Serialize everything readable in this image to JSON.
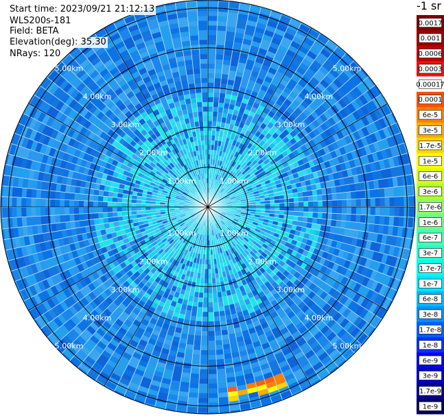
{
  "info": {
    "start_time": "Start time: 2023/09/21 21:12:13",
    "lidar": "WLS200s-181",
    "field": "Field: BETA",
    "elevation": "Elevation(deg): 35.30",
    "nrays": "NRays: 120"
  },
  "chart_data": {
    "type": "heatmap",
    "subtype": "polar-ppi",
    "units_label": "-1 sr",
    "nrays": 120,
    "max_range_km": 5.2,
    "ring_radii_km": [
      1,
      2,
      3,
      4,
      5
    ],
    "range_labels": [
      {
        "text": "1.00km",
        "km": 1
      },
      {
        "text": "2.00km",
        "km": 2
      },
      {
        "text": "3.00km",
        "km": 3
      },
      {
        "text": "4.00km",
        "km": 4
      },
      {
        "text": "5.00km",
        "km": 5
      }
    ],
    "spoke_angles_deg": [
      0,
      30,
      60,
      90,
      120,
      150,
      180,
      210,
      240,
      270,
      300,
      330
    ],
    "colorbar": [
      {
        "label": "0.0017",
        "color": "#7a0000"
      },
      {
        "label": "0.001",
        "color": "#9a0000"
      },
      {
        "label": "0.0006",
        "color": "#c00000"
      },
      {
        "label": "0.0003",
        "color": "#ee1010"
      },
      {
        "label": "0.00017",
        "color": "#ffffff"
      },
      {
        "label": "0.0001",
        "color": "#ff5000"
      },
      {
        "label": "6e-5",
        "color": "#ff8000"
      },
      {
        "label": "3e-5",
        "color": "#ffaa00"
      },
      {
        "label": "1.7e-5",
        "color": "#ffd400"
      },
      {
        "label": "1e-5",
        "color": "#ffff00"
      },
      {
        "label": "6e-6",
        "color": "#d8ff00"
      },
      {
        "label": "3e-6",
        "color": "#b0ff30"
      },
      {
        "label": "1.7e-6",
        "color": "#88ff66"
      },
      {
        "label": "1e-6",
        "color": "#66ff88"
      },
      {
        "label": "6e-7",
        "color": "#44ffb0"
      },
      {
        "label": "3e-7",
        "color": "#22ffd0"
      },
      {
        "label": "1.7e-7",
        "color": "#00ffee"
      },
      {
        "label": "1e-7",
        "color": "#00e4ff"
      },
      {
        "label": "6e-8",
        "color": "#00b8ff"
      },
      {
        "label": "3e-8",
        "color": "#0090ff"
      },
      {
        "label": "1.7e-8",
        "color": "#0060ff"
      },
      {
        "label": "1e-8",
        "color": "#0030ff"
      },
      {
        "label": "6e-9",
        "color": "#0000ee"
      },
      {
        "label": "3e-9",
        "color": "#0000c0"
      },
      {
        "label": "1.7e-9",
        "color": "#000090"
      },
      {
        "label": "1e-9",
        "color": "#000060"
      }
    ],
    "hotspot": {
      "label": "",
      "azimuth_deg_range": [
        155,
        175
      ],
      "range_km": [
        4.5,
        4.8
      ],
      "color": "#ffcc00"
    }
  }
}
